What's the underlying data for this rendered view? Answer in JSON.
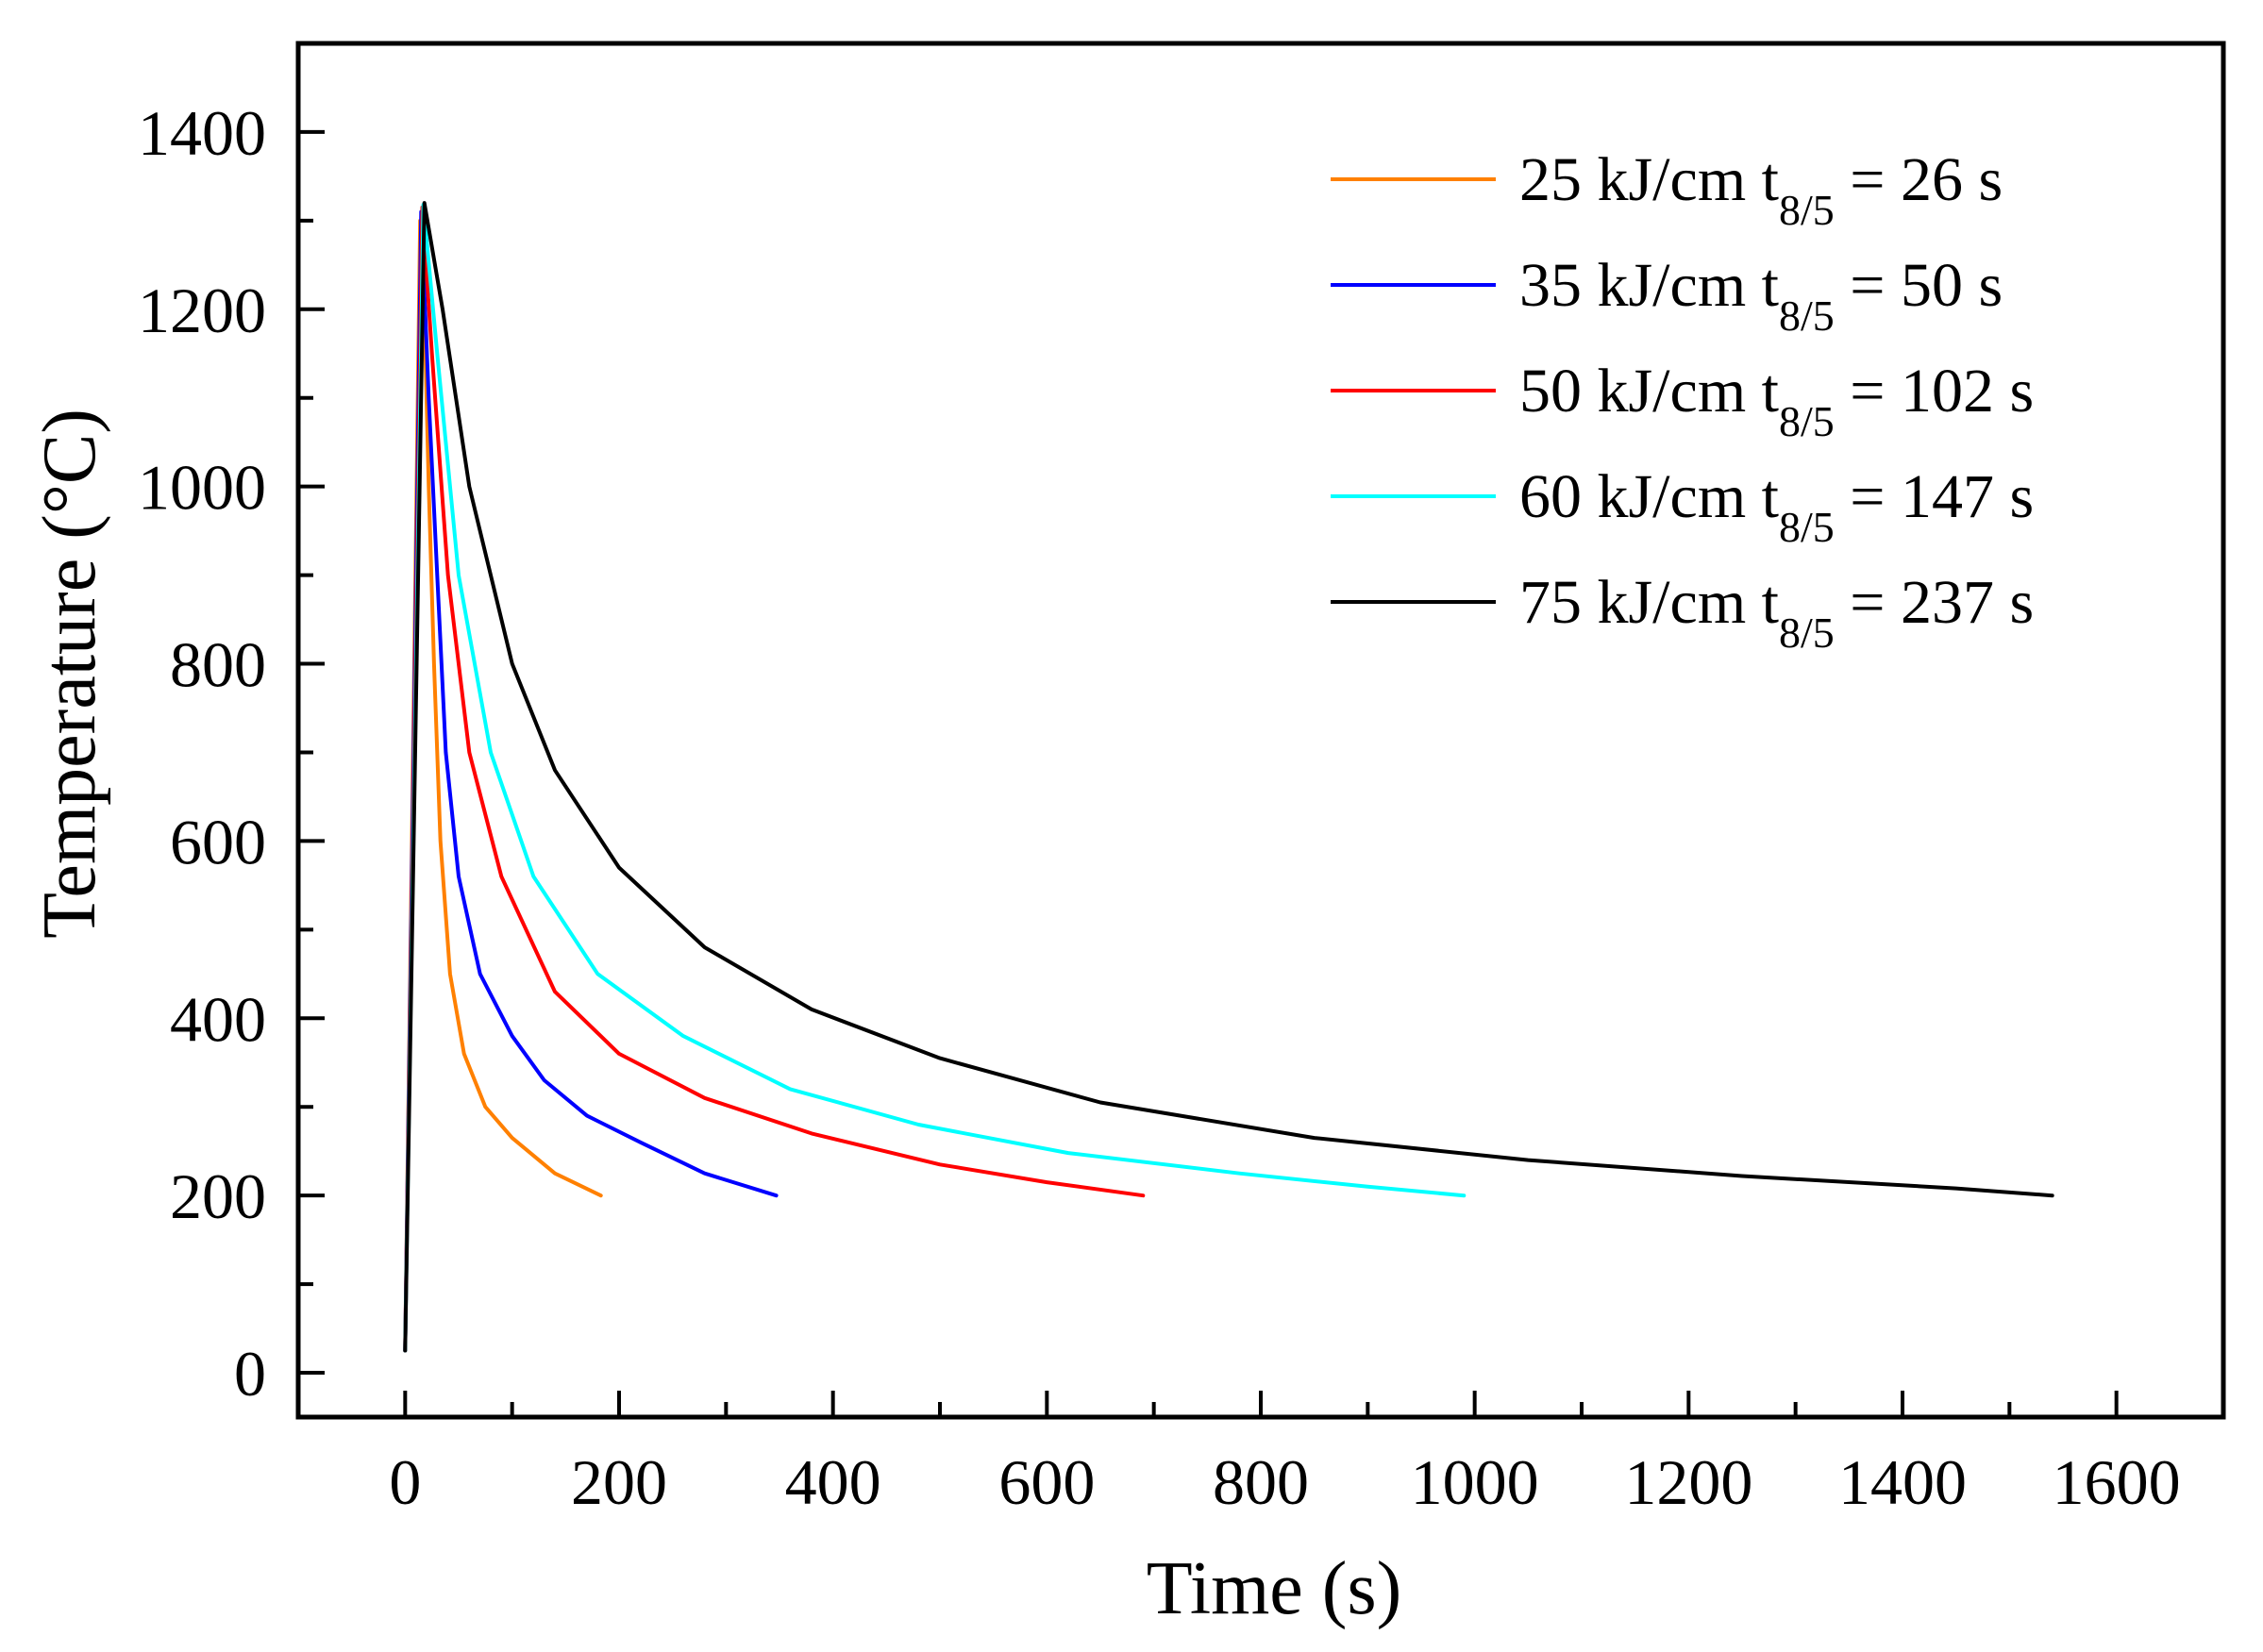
{
  "chart_data": {
    "type": "line",
    "title": "",
    "xlabel": "Time (s)",
    "ylabel": "Temperature (°C)",
    "xlim": [
      -100,
      1700
    ],
    "ylim": [
      -50,
      1500
    ],
    "xticks": [
      0,
      200,
      400,
      600,
      800,
      1000,
      1200,
      1400,
      1600
    ],
    "xtick_labels": [
      "0",
      "200",
      "400",
      "600",
      "800",
      "1000",
      "1200",
      "1400",
      "1600"
    ],
    "yticks": [
      0,
      200,
      400,
      600,
      800,
      1000,
      1200,
      1400
    ],
    "ytick_labels": [
      "0",
      "200",
      "400",
      "600",
      "800",
      "1000",
      "1200",
      "1400"
    ],
    "legend_position": "top-right",
    "series": [
      {
        "name": "25 kJ/cm  t8/5 = 26 s",
        "label_main": "25 kJ/cm  t",
        "label_sub": "8/5",
        "label_tail": " = 26 s",
        "color": "#FF8000",
        "points": [
          [
            0,
            25
          ],
          [
            14,
            1300
          ],
          [
            18,
            1200
          ],
          [
            22,
            1000
          ],
          [
            27,
            800
          ],
          [
            33,
            600
          ],
          [
            42,
            450
          ],
          [
            55,
            360
          ],
          [
            75,
            300
          ],
          [
            100,
            265
          ],
          [
            140,
            225
          ],
          [
            183,
            200
          ]
        ]
      },
      {
        "name": "35 kJ/cm  t8/5 = 50 s",
        "label_main": "35 kJ/cm  t",
        "label_sub": "8/5",
        "label_tail": " = 50 s",
        "color": "#0000FF",
        "points": [
          [
            0,
            25
          ],
          [
            15,
            1310
          ],
          [
            22,
            1100
          ],
          [
            30,
            900
          ],
          [
            38,
            700
          ],
          [
            50,
            560
          ],
          [
            70,
            450
          ],
          [
            100,
            380
          ],
          [
            130,
            330
          ],
          [
            170,
            290
          ],
          [
            220,
            260
          ],
          [
            280,
            225
          ],
          [
            347,
            200
          ]
        ]
      },
      {
        "name": "50 kJ/cm  t8/5 = 102 s",
        "label_main": "50 kJ/cm  t",
        "label_sub": "8/5",
        "label_tail": " = 102 s",
        "color": "#FF0000",
        "points": [
          [
            0,
            25
          ],
          [
            16,
            1315
          ],
          [
            25,
            1150
          ],
          [
            40,
            900
          ],
          [
            60,
            700
          ],
          [
            90,
            560
          ],
          [
            140,
            430
          ],
          [
            200,
            360
          ],
          [
            280,
            310
          ],
          [
            380,
            270
          ],
          [
            500,
            235
          ],
          [
            600,
            215
          ],
          [
            690,
            200
          ]
        ]
      },
      {
        "name": "60 kJ/cm  t8/5 = 147 s",
        "label_main": "60 kJ/cm  t",
        "label_sub": "8/5",
        "label_tail": " = 147 s",
        "color": "#00FFFF",
        "points": [
          [
            0,
            25
          ],
          [
            17,
            1318
          ],
          [
            30,
            1150
          ],
          [
            50,
            900
          ],
          [
            80,
            700
          ],
          [
            120,
            560
          ],
          [
            180,
            450
          ],
          [
            260,
            380
          ],
          [
            360,
            320
          ],
          [
            480,
            280
          ],
          [
            620,
            248
          ],
          [
            780,
            225
          ],
          [
            900,
            210
          ],
          [
            990,
            200
          ]
        ]
      },
      {
        "name": "75 kJ/cm  t8/5 = 237 s",
        "label_main": "75 kJ/cm  t",
        "label_sub": "8/5",
        "label_tail": " = 237 s",
        "color": "#000000",
        "points": [
          [
            0,
            25
          ],
          [
            18,
            1320
          ],
          [
            35,
            1200
          ],
          [
            60,
            1000
          ],
          [
            100,
            800
          ],
          [
            140,
            680
          ],
          [
            200,
            570
          ],
          [
            280,
            480
          ],
          [
            380,
            410
          ],
          [
            500,
            355
          ],
          [
            650,
            305
          ],
          [
            850,
            265
          ],
          [
            1050,
            240
          ],
          [
            1250,
            222
          ],
          [
            1450,
            208
          ],
          [
            1540,
            200
          ]
        ]
      }
    ]
  }
}
